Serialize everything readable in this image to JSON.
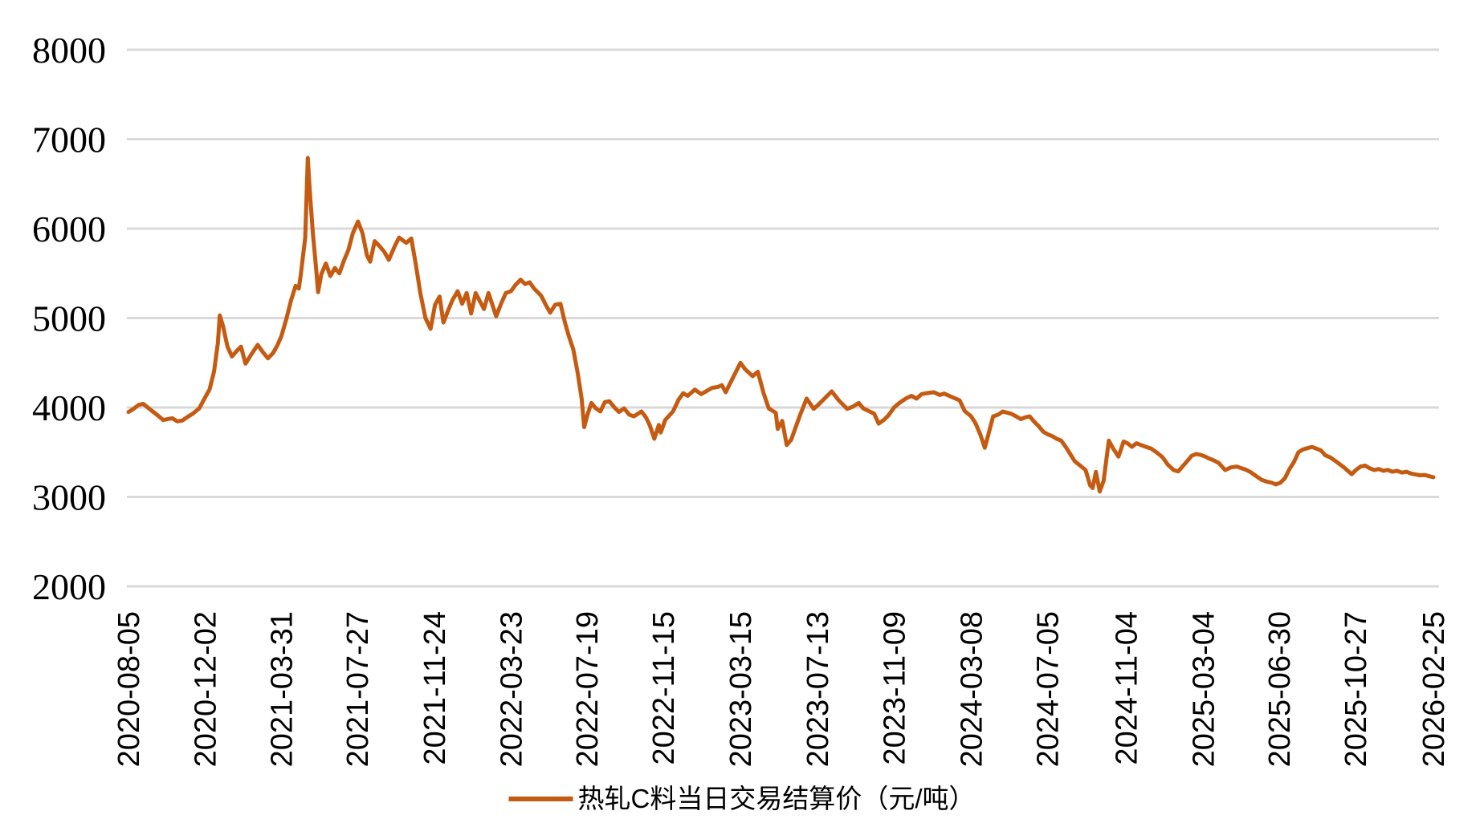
{
  "page": {
    "background": "#FFFFFF"
  },
  "chart_data": {
    "type": "line",
    "title": "",
    "xlabel": "",
    "ylabel": "",
    "grid": "horizontal-only",
    "legend_position": "bottom-center",
    "legend": {
      "label": "热轧C料当日交易结算价（元/吨）"
    },
    "series_color": "#C55A11",
    "gridline_color": "#D9D9D9",
    "text_color": "#000000",
    "ylim": [
      2000,
      8000
    ],
    "y_ticks": [
      2000,
      3000,
      4000,
      5000,
      6000,
      7000,
      8000
    ],
    "x_tick_labels": [
      "2020-08-05",
      "2020-12-02",
      "2021-03-31",
      "2021-07-27",
      "2021-11-24",
      "2022-03-23",
      "2022-07-19",
      "2022-11-15",
      "2023-03-15",
      "2023-07-13",
      "2023-11-09",
      "2024-03-08",
      "2024-07-05",
      "2024-11-04",
      "2025-03-04",
      "2025-06-30",
      "2025-10-27",
      "2026-02-25"
    ],
    "series": [
      {
        "name": "热轧C料当日交易结算价（元/吨）",
        "points": [
          [
            "2020-08-05",
            3950
          ],
          [
            "2020-08-12",
            3980
          ],
          [
            "2020-08-21",
            4030
          ],
          [
            "2020-08-28",
            4040
          ],
          [
            "2020-09-04",
            4000
          ],
          [
            "2020-09-11",
            3960
          ],
          [
            "2020-09-18",
            3920
          ],
          [
            "2020-09-28",
            3860
          ],
          [
            "2020-10-12",
            3880
          ],
          [
            "2020-10-20",
            3845
          ],
          [
            "2020-10-28",
            3855
          ],
          [
            "2020-11-05",
            3895
          ],
          [
            "2020-11-13",
            3930
          ],
          [
            "2020-11-23",
            3990
          ],
          [
            "2020-12-02",
            4110
          ],
          [
            "2020-12-09",
            4200
          ],
          [
            "2020-12-16",
            4400
          ],
          [
            "2020-12-22",
            4720
          ],
          [
            "2020-12-25",
            5030
          ],
          [
            "2020-12-30",
            4910
          ],
          [
            "2021-01-06",
            4680
          ],
          [
            "2021-01-13",
            4570
          ],
          [
            "2021-01-20",
            4630
          ],
          [
            "2021-01-27",
            4680
          ],
          [
            "2021-02-03",
            4490
          ],
          [
            "2021-02-10",
            4570
          ],
          [
            "2021-02-22",
            4700
          ],
          [
            "2021-03-02",
            4620
          ],
          [
            "2021-03-10",
            4550
          ],
          [
            "2021-03-18",
            4610
          ],
          [
            "2021-03-25",
            4700
          ],
          [
            "2021-03-31",
            4800
          ],
          [
            "2021-04-08",
            5000
          ],
          [
            "2021-04-15",
            5200
          ],
          [
            "2021-04-22",
            5360
          ],
          [
            "2021-04-27",
            5330
          ],
          [
            "2021-04-30",
            5480
          ],
          [
            "2021-05-07",
            5900
          ],
          [
            "2021-05-11",
            6790
          ],
          [
            "2021-05-14",
            6430
          ],
          [
            "2021-05-19",
            5940
          ],
          [
            "2021-05-24",
            5550
          ],
          [
            "2021-05-27",
            5290
          ],
          [
            "2021-06-01",
            5490
          ],
          [
            "2021-06-08",
            5610
          ],
          [
            "2021-06-15",
            5470
          ],
          [
            "2021-06-22",
            5560
          ],
          [
            "2021-06-29",
            5500
          ],
          [
            "2021-07-06",
            5640
          ],
          [
            "2021-07-13",
            5760
          ],
          [
            "2021-07-20",
            5950
          ],
          [
            "2021-07-28",
            6080
          ],
          [
            "2021-08-04",
            5950
          ],
          [
            "2021-08-11",
            5700
          ],
          [
            "2021-08-16",
            5630
          ],
          [
            "2021-08-23",
            5860
          ],
          [
            "2021-08-31",
            5800
          ],
          [
            "2021-09-07",
            5740
          ],
          [
            "2021-09-14",
            5650
          ],
          [
            "2021-09-23",
            5800
          ],
          [
            "2021-09-30",
            5900
          ],
          [
            "2021-10-11",
            5840
          ],
          [
            "2021-10-19",
            5890
          ],
          [
            "2021-10-26",
            5600
          ],
          [
            "2021-11-02",
            5280
          ],
          [
            "2021-11-10",
            5000
          ],
          [
            "2021-11-18",
            4880
          ],
          [
            "2021-11-25",
            5150
          ],
          [
            "2021-12-02",
            5240
          ],
          [
            "2021-12-08",
            4950
          ],
          [
            "2021-12-15",
            5080
          ],
          [
            "2021-12-22",
            5200
          ],
          [
            "2021-12-30",
            5300
          ],
          [
            "2022-01-06",
            5160
          ],
          [
            "2022-01-13",
            5280
          ],
          [
            "2022-01-20",
            5050
          ],
          [
            "2022-01-27",
            5280
          ],
          [
            "2022-02-09",
            5100
          ],
          [
            "2022-02-16",
            5280
          ],
          [
            "2022-02-28",
            5020
          ],
          [
            "2022-03-07",
            5150
          ],
          [
            "2022-03-15",
            5280
          ],
          [
            "2022-03-23",
            5300
          ],
          [
            "2022-03-30",
            5370
          ],
          [
            "2022-04-07",
            5430
          ],
          [
            "2022-04-14",
            5380
          ],
          [
            "2022-04-21",
            5400
          ],
          [
            "2022-04-28",
            5330
          ],
          [
            "2022-05-09",
            5250
          ],
          [
            "2022-05-16",
            5150
          ],
          [
            "2022-05-23",
            5060
          ],
          [
            "2022-05-31",
            5150
          ],
          [
            "2022-06-08",
            5160
          ],
          [
            "2022-06-15",
            4950
          ],
          [
            "2022-06-21",
            4800
          ],
          [
            "2022-06-28",
            4650
          ],
          [
            "2022-07-05",
            4380
          ],
          [
            "2022-07-11",
            4100
          ],
          [
            "2022-07-15",
            3780
          ],
          [
            "2022-07-20",
            3920
          ],
          [
            "2022-07-26",
            4050
          ],
          [
            "2022-08-02",
            3990
          ],
          [
            "2022-08-09",
            3955
          ],
          [
            "2022-08-16",
            4060
          ],
          [
            "2022-08-23",
            4070
          ],
          [
            "2022-08-31",
            4000
          ],
          [
            "2022-09-07",
            3950
          ],
          [
            "2022-09-15",
            3990
          ],
          [
            "2022-09-23",
            3920
          ],
          [
            "2022-09-30",
            3900
          ],
          [
            "2022-10-12",
            3955
          ],
          [
            "2022-10-19",
            3890
          ],
          [
            "2022-10-25",
            3800
          ],
          [
            "2022-11-01",
            3650
          ],
          [
            "2022-11-08",
            3805
          ],
          [
            "2022-11-11",
            3720
          ],
          [
            "2022-11-18",
            3860
          ],
          [
            "2022-11-30",
            3955
          ],
          [
            "2022-12-09",
            4090
          ],
          [
            "2022-12-16",
            4160
          ],
          [
            "2022-12-23",
            4130
          ],
          [
            "2023-01-03",
            4200
          ],
          [
            "2023-01-13",
            4150
          ],
          [
            "2023-01-30",
            4220
          ],
          [
            "2023-02-08",
            4230
          ],
          [
            "2023-02-14",
            4250
          ],
          [
            "2023-02-20",
            4170
          ],
          [
            "2023-03-01",
            4300
          ],
          [
            "2023-03-08",
            4400
          ],
          [
            "2023-03-15",
            4500
          ],
          [
            "2023-03-22",
            4430
          ],
          [
            "2023-04-03",
            4350
          ],
          [
            "2023-04-11",
            4400
          ],
          [
            "2023-04-20",
            4160
          ],
          [
            "2023-04-28",
            3990
          ],
          [
            "2023-05-09",
            3940
          ],
          [
            "2023-05-12",
            3760
          ],
          [
            "2023-05-19",
            3850
          ],
          [
            "2023-05-26",
            3580
          ],
          [
            "2023-06-02",
            3640
          ],
          [
            "2023-06-09",
            3780
          ],
          [
            "2023-06-16",
            3920
          ],
          [
            "2023-06-26",
            4100
          ],
          [
            "2023-07-07",
            3985
          ],
          [
            "2023-07-14",
            4030
          ],
          [
            "2023-07-21",
            4080
          ],
          [
            "2023-08-04",
            4180
          ],
          [
            "2023-08-15",
            4080
          ],
          [
            "2023-08-28",
            3985
          ],
          [
            "2023-09-06",
            4010
          ],
          [
            "2023-09-15",
            4050
          ],
          [
            "2023-09-22",
            3990
          ],
          [
            "2023-10-09",
            3930
          ],
          [
            "2023-10-16",
            3820
          ],
          [
            "2023-10-24",
            3860
          ],
          [
            "2023-10-31",
            3910
          ],
          [
            "2023-11-09",
            4000
          ],
          [
            "2023-11-17",
            4050
          ],
          [
            "2023-11-27",
            4100
          ],
          [
            "2023-12-06",
            4130
          ],
          [
            "2023-12-14",
            4100
          ],
          [
            "2023-12-22",
            4150
          ],
          [
            "2024-01-03",
            4165
          ],
          [
            "2024-01-10",
            4170
          ],
          [
            "2024-01-19",
            4140
          ],
          [
            "2024-01-26",
            4155
          ],
          [
            "2024-02-06",
            4120
          ],
          [
            "2024-02-19",
            4080
          ],
          [
            "2024-02-27",
            3960
          ],
          [
            "2024-03-08",
            3900
          ],
          [
            "2024-03-15",
            3820
          ],
          [
            "2024-03-22",
            3700
          ],
          [
            "2024-03-29",
            3550
          ],
          [
            "2024-04-03",
            3680
          ],
          [
            "2024-04-11",
            3900
          ],
          [
            "2024-04-19",
            3920
          ],
          [
            "2024-04-26",
            3955
          ],
          [
            "2024-05-09",
            3930
          ],
          [
            "2024-05-17",
            3900
          ],
          [
            "2024-05-24",
            3870
          ],
          [
            "2024-05-31",
            3890
          ],
          [
            "2024-06-07",
            3900
          ],
          [
            "2024-06-14",
            3840
          ],
          [
            "2024-06-21",
            3790
          ],
          [
            "2024-06-28",
            3730
          ],
          [
            "2024-07-05",
            3700
          ],
          [
            "2024-07-12",
            3680
          ],
          [
            "2024-07-19",
            3650
          ],
          [
            "2024-07-26",
            3630
          ],
          [
            "2024-08-02",
            3560
          ],
          [
            "2024-08-09",
            3480
          ],
          [
            "2024-08-16",
            3400
          ],
          [
            "2024-08-23",
            3360
          ],
          [
            "2024-09-02",
            3300
          ],
          [
            "2024-09-09",
            3130
          ],
          [
            "2024-09-13",
            3100
          ],
          [
            "2024-09-18",
            3280
          ],
          [
            "2024-09-24",
            3060
          ],
          [
            "2024-09-30",
            3180
          ],
          [
            "2024-10-08",
            3630
          ],
          [
            "2024-10-14",
            3550
          ],
          [
            "2024-10-23",
            3450
          ],
          [
            "2024-10-31",
            3620
          ],
          [
            "2024-11-06",
            3600
          ],
          [
            "2024-11-13",
            3560
          ],
          [
            "2024-11-20",
            3600
          ],
          [
            "2024-11-27",
            3580
          ],
          [
            "2024-12-05",
            3560
          ],
          [
            "2024-12-13",
            3540
          ],
          [
            "2024-12-23",
            3490
          ],
          [
            "2024-12-31",
            3440
          ],
          [
            "2025-01-08",
            3360
          ],
          [
            "2025-01-17",
            3300
          ],
          [
            "2025-01-24",
            3285
          ],
          [
            "2025-02-07",
            3400
          ],
          [
            "2025-02-14",
            3460
          ],
          [
            "2025-02-21",
            3480
          ],
          [
            "2025-02-28",
            3470
          ],
          [
            "2025-03-06",
            3455
          ],
          [
            "2025-03-13",
            3430
          ],
          [
            "2025-03-20",
            3410
          ],
          [
            "2025-03-28",
            3380
          ],
          [
            "2025-04-07",
            3300
          ],
          [
            "2025-04-16",
            3330
          ],
          [
            "2025-04-25",
            3340
          ],
          [
            "2025-05-09",
            3305
          ],
          [
            "2025-05-16",
            3280
          ],
          [
            "2025-05-26",
            3230
          ],
          [
            "2025-06-03",
            3190
          ],
          [
            "2025-06-11",
            3170
          ],
          [
            "2025-06-18",
            3160
          ],
          [
            "2025-06-25",
            3140
          ],
          [
            "2025-07-02",
            3160
          ],
          [
            "2025-07-09",
            3210
          ],
          [
            "2025-07-16",
            3310
          ],
          [
            "2025-07-23",
            3390
          ],
          [
            "2025-07-30",
            3500
          ],
          [
            "2025-08-06",
            3530
          ],
          [
            "2025-08-13",
            3545
          ],
          [
            "2025-08-20",
            3560
          ],
          [
            "2025-08-27",
            3540
          ],
          [
            "2025-09-03",
            3520
          ],
          [
            "2025-09-10",
            3465
          ],
          [
            "2025-09-17",
            3445
          ],
          [
            "2025-09-24",
            3410
          ],
          [
            "2025-10-09",
            3330
          ],
          [
            "2025-10-16",
            3285
          ],
          [
            "2025-10-21",
            3255
          ],
          [
            "2025-10-28",
            3305
          ],
          [
            "2025-11-04",
            3340
          ],
          [
            "2025-11-11",
            3350
          ],
          [
            "2025-11-18",
            3320
          ],
          [
            "2025-11-25",
            3300
          ],
          [
            "2025-12-02",
            3312
          ],
          [
            "2025-12-09",
            3292
          ],
          [
            "2025-12-16",
            3302
          ],
          [
            "2025-12-23",
            3282
          ],
          [
            "2025-12-30",
            3292
          ],
          [
            "2026-01-07",
            3272
          ],
          [
            "2026-01-14",
            3282
          ],
          [
            "2026-01-21",
            3262
          ],
          [
            "2026-01-28",
            3252
          ],
          [
            "2026-02-04",
            3242
          ],
          [
            "2026-02-11",
            3246
          ],
          [
            "2026-02-18",
            3232
          ],
          [
            "2026-02-25",
            3220
          ]
        ]
      }
    ]
  }
}
